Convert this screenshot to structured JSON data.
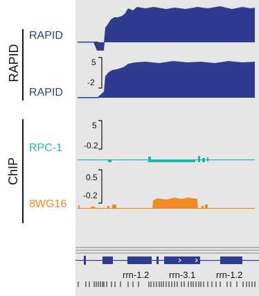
{
  "groups": {
    "rapid_label": "RAPID",
    "chip_label": "ChIP"
  },
  "tracks": {
    "rapid1": {
      "label": "RAPID",
      "color": "#2e3b8f"
    },
    "rapid2": {
      "label": "RAPID",
      "color": "#2e3b8f",
      "scale_top": "5",
      "scale_bottom": "-2"
    },
    "rpc1": {
      "label": "RPC-1",
      "color": "#1fb5ae",
      "scale_top": "5",
      "scale_bottom": "-0.2"
    },
    "wg16": {
      "label": "8WG16",
      "color": "#f08a24",
      "scale_top": "0.5",
      "scale_bottom": "-0.2"
    }
  },
  "genes": [
    "rrn-1.2",
    "rrn-3.1",
    "rrn-1.2"
  ],
  "colors": {
    "panel_bg": "#e6e6e6",
    "gene_color": "#2e3b8f",
    "divider": "#9a9a9a"
  }
}
